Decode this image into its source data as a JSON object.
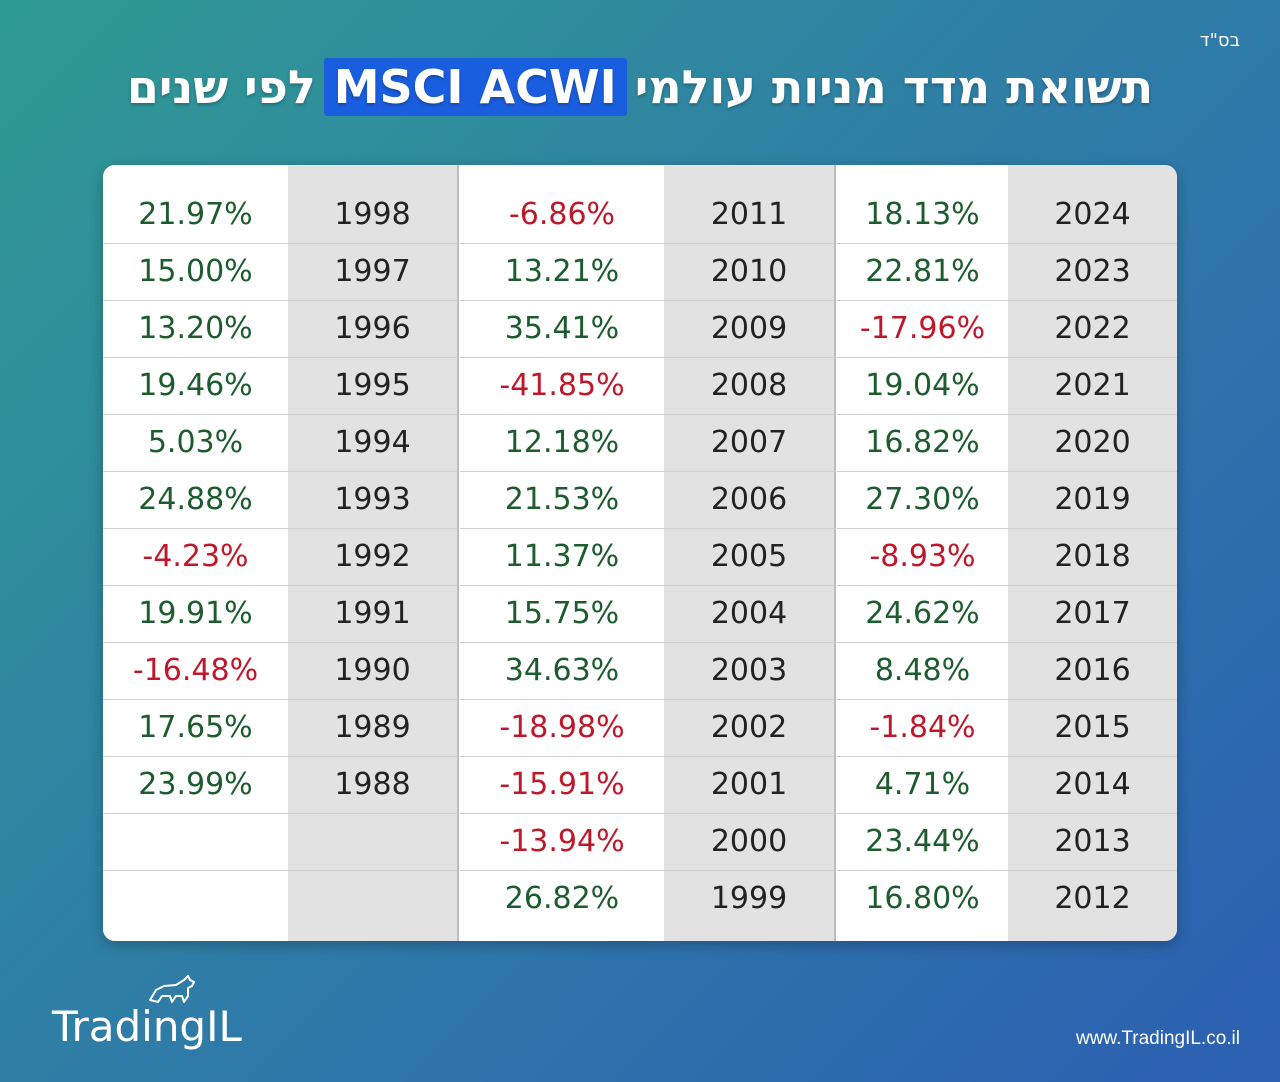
{
  "header": {
    "bsd": "בס\"ד",
    "title_before": "תשואת מדד מניות עולמי",
    "title_highlight": "MSCI ACWI",
    "title_after": "לפי שנים"
  },
  "colors": {
    "positive": "#1d5c2f",
    "negative": "#c0182b",
    "highlight": "#1a5ee0"
  },
  "chart_data": {
    "type": "table",
    "columns": [
      "year",
      "return"
    ],
    "rows": [
      {
        "year": "2024",
        "return": "18.13%"
      },
      {
        "year": "2023",
        "return": "22.81%"
      },
      {
        "year": "2022",
        "return": "-17.96%"
      },
      {
        "year": "2021",
        "return": "19.04%"
      },
      {
        "year": "2020",
        "return": "16.82%"
      },
      {
        "year": "2019",
        "return": "27.30%"
      },
      {
        "year": "2018",
        "return": "-8.93%"
      },
      {
        "year": "2017",
        "return": "24.62%"
      },
      {
        "year": "2016",
        "return": "8.48%"
      },
      {
        "year": "2015",
        "return": "-1.84%"
      },
      {
        "year": "2014",
        "return": "4.71%"
      },
      {
        "year": "2013",
        "return": "23.44%"
      },
      {
        "year": "2012",
        "return": "16.80%"
      },
      {
        "year": "2011",
        "return": "-6.86%"
      },
      {
        "year": "2010",
        "return": "13.21%"
      },
      {
        "year": "2009",
        "return": "35.41%"
      },
      {
        "year": "2008",
        "return": "-41.85%"
      },
      {
        "year": "2007",
        "return": "12.18%"
      },
      {
        "year": "2006",
        "return": "21.53%"
      },
      {
        "year": "2005",
        "return": "11.37%"
      },
      {
        "year": "2004",
        "return": "15.75%"
      },
      {
        "year": "2003",
        "return": "34.63%"
      },
      {
        "year": "2002",
        "return": "-18.98%"
      },
      {
        "year": "2001",
        "return": "-15.91%"
      },
      {
        "year": "2000",
        "return": "-13.94%"
      },
      {
        "year": "1999",
        "return": "26.82%"
      },
      {
        "year": "1998",
        "return": "21.97%"
      },
      {
        "year": "1997",
        "return": "15.00%"
      },
      {
        "year": "1996",
        "return": "13.20%"
      },
      {
        "year": "1995",
        "return": "19.46%"
      },
      {
        "year": "1994",
        "return": "5.03%"
      },
      {
        "year": "1993",
        "return": "24.88%"
      },
      {
        "year": "1992",
        "return": "-4.23%"
      },
      {
        "year": "1991",
        "return": "19.91%"
      },
      {
        "year": "1990",
        "return": "-16.48%"
      },
      {
        "year": "1989",
        "return": "17.65%"
      },
      {
        "year": "1988",
        "return": "23.99%"
      }
    ]
  },
  "footer": {
    "logo_text": "TradingIL",
    "logo_icon": "bull-icon",
    "url": "www.TradingIL.co.il"
  }
}
